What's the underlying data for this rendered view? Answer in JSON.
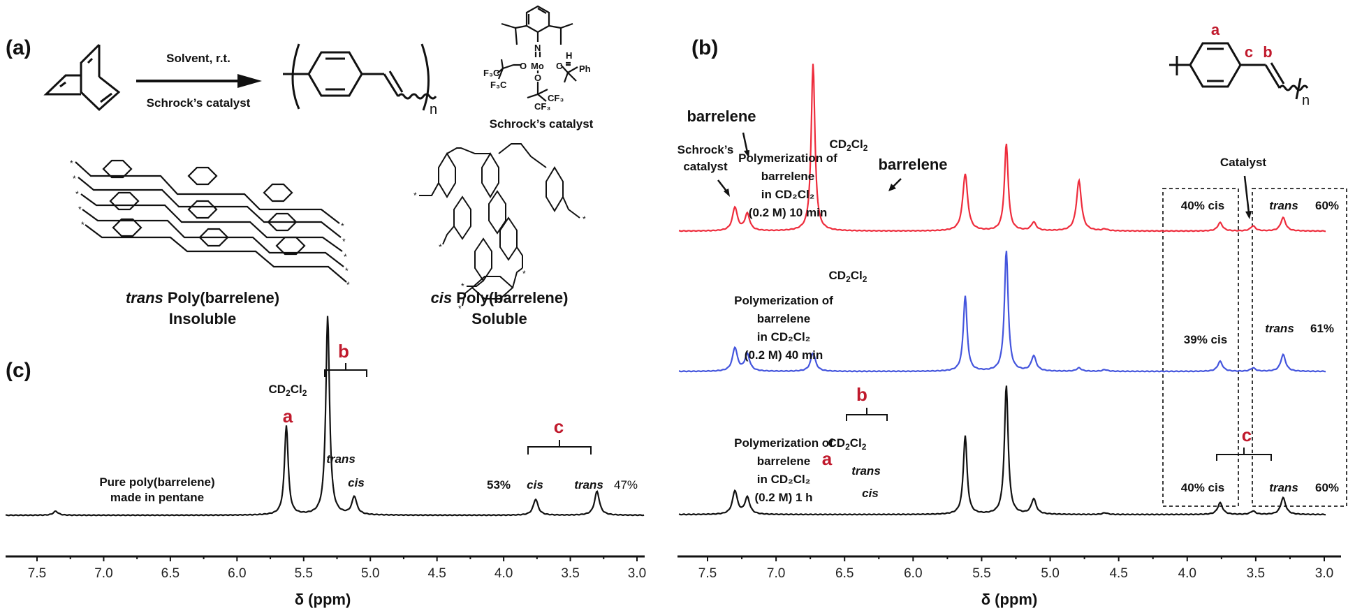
{
  "panels": {
    "a": {
      "label": "(a)",
      "reaction": {
        "above_arrow": "Solvent, r.t.",
        "below_arrow": "Schrock’s catalyst",
        "repeat_subscript": "n"
      },
      "catalyst": {
        "caption": "Schrock’s catalyst",
        "atoms": {
          "N": "N",
          "Mo": "Mo",
          "O1": "O",
          "O2": "O",
          "C": "C",
          "H": "H",
          "Ph": "Ph",
          "CF3a": "F₃C",
          "CF3b": "F₃C",
          "CF3c": "CF₃",
          "CF3d": "CF₃"
        }
      },
      "trans_polymer": {
        "name_italic": "trans",
        "name_rest": " Poly(barrelene)",
        "solubility": "Insoluble"
      },
      "cis_polymer": {
        "name_italic": "cis",
        "name_rest": " Poly(barrelene)",
        "solubility": "Soluble"
      }
    },
    "b": {
      "label": "(b)",
      "structure_labels": {
        "a": "a",
        "b": "b",
        "c": "c",
        "n": "n"
      },
      "spectra": [
        {
          "color": "#ee2c3c",
          "desc": [
            "Polymerization of",
            "barrelene",
            "in CD₂Cl₂",
            "(0.2 M) 10 min"
          ],
          "annotations": {
            "schrock": [
              "Schrock’s",
              "catalyst"
            ],
            "barrelene_left": "barrelene",
            "barrelene_right": "barrelene",
            "solvent": "CD₂Cl₂",
            "catalyst": "Catalyst",
            "cis": "40% cis",
            "trans": "trans",
            "trans_pct": "60%"
          }
        },
        {
          "color": "#4455dd",
          "desc": [
            "Polymerization of",
            "barrelene",
            "in CD₂Cl₂",
            "(0.2 M) 40 min"
          ],
          "annotations": {
            "solvent": "CD₂Cl₂",
            "cis": "39% cis",
            "trans": "trans",
            "trans_pct": "61%"
          }
        },
        {
          "color": "#111111",
          "desc": [
            "Polymerization of",
            "barrelene",
            "in CD₂Cl₂",
            "(0.2 M) 1 h"
          ],
          "annotations": {
            "solvent": "CD₂Cl₂",
            "a": "a",
            "b": "b",
            "c": "c",
            "trans_b": "trans",
            "cis_b": "cis",
            "cis": "40% cis",
            "trans": "trans",
            "trans_pct": "60%"
          }
        }
      ],
      "xlabel": "δ (ppm)"
    },
    "c": {
      "label": "(c)",
      "desc": [
        "Pure poly(barrelene)",
        "made in pentane"
      ],
      "annotations": {
        "a": "a",
        "b": "b",
        "c": "c",
        "solvent": "CD₂Cl₂",
        "trans_b": "trans",
        "cis_b": "cis",
        "cis_pct": "53%",
        "cis_c": "cis",
        "trans_c": "trans",
        "trans_pct": "47%"
      },
      "xlabel": "δ (ppm)"
    }
  },
  "axis_ticks": [
    "7.5",
    "7.0",
    "6.5",
    "6.0",
    "5.5",
    "5.0",
    "4.5",
    "4.0",
    "3.5",
    "3.0"
  ],
  "chart_data": [
    {
      "type": "line",
      "title": "(c) Pure poly(barrelene) made in pentane",
      "xlabel": "δ (ppm)",
      "ylabel": "",
      "xlim": [
        7.75,
        2.9
      ],
      "x_reversed": true,
      "grid": false,
      "series": [
        {
          "name": "Pure poly(barrelene) made in pentane",
          "color": "#111111",
          "peaks": [
            {
              "ppm": 7.36,
              "rel_height": 0.02,
              "label": ""
            },
            {
              "ppm": 5.63,
              "rel_height": 0.45,
              "label": "a"
            },
            {
              "ppm": 5.32,
              "rel_height": 1.0,
              "label": "CD2Cl2"
            },
            {
              "ppm": 5.12,
              "rel_height": 0.09,
              "label": "b cis"
            },
            {
              "ppm": 3.76,
              "rel_height": 0.08,
              "label": "c cis 53%"
            },
            {
              "ppm": 3.3,
              "rel_height": 0.12,
              "label": "c trans 47%"
            }
          ]
        }
      ]
    },
    {
      "type": "line",
      "title": "(b) Polymerization of barrelene in CD2Cl2 (0.2 M)",
      "xlabel": "δ (ppm)",
      "ylabel": "",
      "xlim": [
        7.72,
        2.88
      ],
      "x_reversed": true,
      "grid": false,
      "legend": [
        "10 min",
        "40 min",
        "1 h"
      ],
      "series": [
        {
          "name": "10 min",
          "color": "#ee2c3c",
          "peaks": [
            {
              "ppm": 7.3,
              "rel_height": 0.14,
              "label": "Schrock's catalyst"
            },
            {
              "ppm": 7.21,
              "rel_height": 0.1,
              "label": ""
            },
            {
              "ppm": 6.73,
              "rel_height": 1.0,
              "label": "barrelene"
            },
            {
              "ppm": 5.62,
              "rel_height": 0.34,
              "label": ""
            },
            {
              "ppm": 5.32,
              "rel_height": 0.52,
              "label": "CD2Cl2"
            },
            {
              "ppm": 5.12,
              "rel_height": 0.05,
              "label": ""
            },
            {
              "ppm": 4.79,
              "rel_height": 0.3,
              "label": "barrelene"
            },
            {
              "ppm": 4.6,
              "rel_height": 0.01,
              "label": ""
            },
            {
              "ppm": 3.76,
              "rel_height": 0.05,
              "label": "40% cis"
            },
            {
              "ppm": 3.52,
              "rel_height": 0.03,
              "label": "Catalyst"
            },
            {
              "ppm": 3.3,
              "rel_height": 0.08,
              "label": "trans 60%"
            }
          ]
        },
        {
          "name": "40 min",
          "color": "#4455dd",
          "peaks": [
            {
              "ppm": 7.3,
              "rel_height": 0.14,
              "label": ""
            },
            {
              "ppm": 7.21,
              "rel_height": 0.1,
              "label": ""
            },
            {
              "ppm": 6.73,
              "rel_height": 0.11,
              "label": ""
            },
            {
              "ppm": 5.62,
              "rel_height": 0.45,
              "label": ""
            },
            {
              "ppm": 5.32,
              "rel_height": 0.72,
              "label": "CD2Cl2"
            },
            {
              "ppm": 5.12,
              "rel_height": 0.09,
              "label": ""
            },
            {
              "ppm": 4.79,
              "rel_height": 0.02,
              "label": ""
            },
            {
              "ppm": 4.6,
              "rel_height": 0.01,
              "label": ""
            },
            {
              "ppm": 3.76,
              "rel_height": 0.06,
              "label": "39% cis"
            },
            {
              "ppm": 3.52,
              "rel_height": 0.02,
              "label": ""
            },
            {
              "ppm": 3.3,
              "rel_height": 0.1,
              "label": "trans 61%"
            }
          ]
        },
        {
          "name": "1 h",
          "color": "#111111",
          "peaks": [
            {
              "ppm": 7.3,
              "rel_height": 0.14,
              "label": ""
            },
            {
              "ppm": 7.21,
              "rel_height": 0.1,
              "label": ""
            },
            {
              "ppm": 5.62,
              "rel_height": 0.47,
              "label": "a"
            },
            {
              "ppm": 5.32,
              "rel_height": 0.77,
              "label": "CD2Cl2"
            },
            {
              "ppm": 5.12,
              "rel_height": 0.09,
              "label": "b cis"
            },
            {
              "ppm": 4.6,
              "rel_height": 0.01,
              "label": ""
            },
            {
              "ppm": 3.76,
              "rel_height": 0.07,
              "label": "c 40% cis"
            },
            {
              "ppm": 3.52,
              "rel_height": 0.02,
              "label": ""
            },
            {
              "ppm": 3.3,
              "rel_height": 0.1,
              "label": "c trans 60%"
            }
          ]
        }
      ]
    }
  ]
}
